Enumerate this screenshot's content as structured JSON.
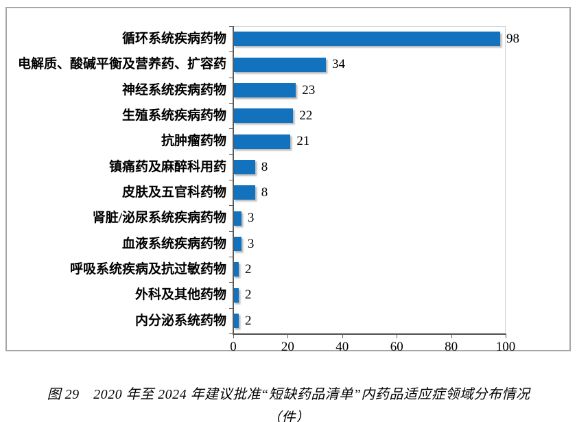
{
  "figure": {
    "caption_line1": "图 29　2020 年至 2024 年建议批准“短缺药品清单”内药品适应症领域分布情况",
    "caption_line2": "（件）"
  },
  "chart_data": {
    "type": "bar",
    "orientation": "horizontal",
    "title": "",
    "xlabel": "",
    "ylabel": "",
    "categories": [
      "循环系统疾病药物",
      "电解质、酸碱平衡及营养药、扩容药",
      "神经系统疾病药物",
      "生殖系统疾病药物",
      "抗肿瘤药物",
      "镇痛药及麻醉科用药",
      "皮肤及五官科药物",
      "肾脏/泌尿系统疾病药物",
      "血液系统疾病药物",
      "呼吸系统疾病及抗过敏药物",
      "外科及其他药物",
      "内分泌系统药物"
    ],
    "values": [
      98,
      34,
      23,
      22,
      21,
      8,
      8,
      3,
      3,
      2,
      2,
      2
    ],
    "data_labels": [
      98,
      34,
      23,
      22,
      21,
      8,
      8,
      3,
      3,
      2,
      2,
      2
    ],
    "xlim": [
      0,
      100
    ],
    "xticks": [
      0,
      20,
      40,
      60,
      80,
      100
    ],
    "grid": false,
    "legend": false,
    "bar_color": "#1272be",
    "axis_color": "#5a5a5a",
    "plot_border_color": "#d0d0d0"
  }
}
